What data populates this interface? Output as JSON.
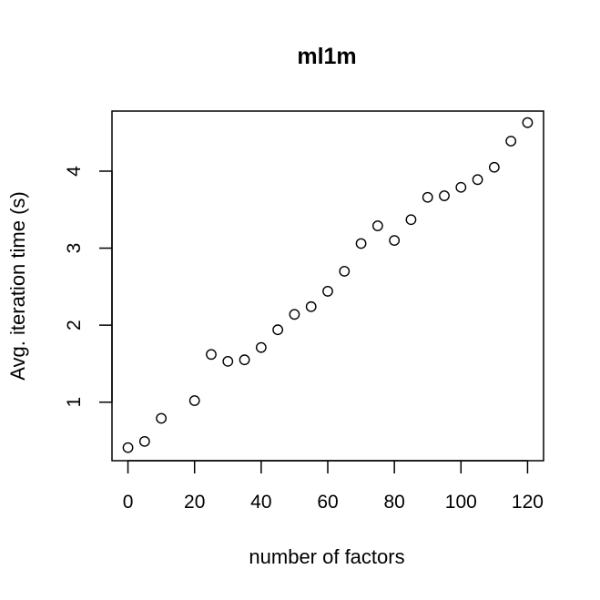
{
  "chart_data": {
    "type": "scatter",
    "title": "ml1m",
    "xlabel": "number of factors",
    "ylabel": "Avg. iteration time (s)",
    "xlim": [
      -4.8,
      124.8
    ],
    "ylim": [
      0.24,
      4.78
    ],
    "xticks": [
      0,
      20,
      40,
      60,
      80,
      100,
      120
    ],
    "yticks": [
      1,
      2,
      3,
      4
    ],
    "marker": "open-circle",
    "grid": false,
    "series": [
      {
        "x": [
          0,
          5,
          10,
          20,
          25,
          30,
          35,
          40,
          45,
          50,
          55,
          60,
          65,
          70,
          75,
          80,
          85,
          90,
          95,
          100,
          105,
          110,
          115,
          120
        ],
        "y": [
          0.41,
          0.49,
          0.79,
          1.02,
          1.62,
          1.53,
          1.55,
          1.71,
          1.94,
          2.14,
          2.24,
          2.44,
          2.7,
          3.06,
          3.29,
          3.1,
          3.37,
          3.66,
          3.68,
          3.79,
          3.89,
          4.05,
          4.39,
          4.63
        ]
      }
    ]
  }
}
